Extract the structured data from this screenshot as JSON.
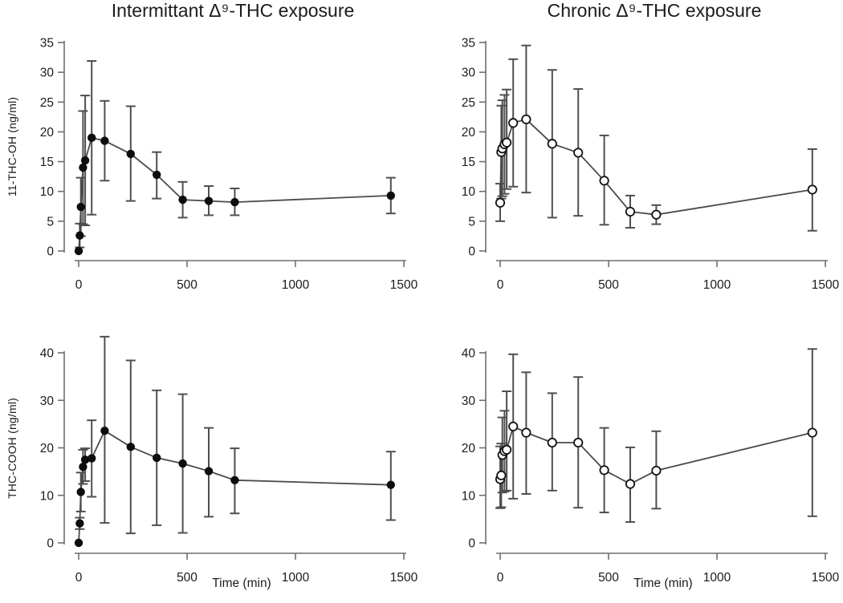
{
  "shared": {
    "x_axis_label": "Time (min)",
    "xticks": [
      0,
      500,
      1000,
      1500
    ],
    "time_points_min": [
      0,
      5,
      10,
      20,
      30,
      60,
      120,
      240,
      360,
      480,
      600,
      720,
      1440
    ]
  },
  "colors": {
    "line": "#4a4a4a",
    "error_bar": "#4f4f4f",
    "marker_filled": "#0d0d0d",
    "marker_open_fill": "#ffffff",
    "marker_open_stroke": "#111111",
    "text": "#1c1c1c",
    "background": "#ffffff"
  },
  "chart_data": [
    {
      "type": "line",
      "panel": "top-left",
      "title": "Intermittant Δ⁹-THC exposure",
      "ylabel": "11-THC-OH (ng/ml)",
      "xlabel": "",
      "marker": "filled",
      "xlim": [
        0,
        1500
      ],
      "ylim": [
        0,
        35
      ],
      "yticks": [
        0,
        5,
        10,
        15,
        20,
        25,
        30,
        35
      ],
      "xticks": [
        0,
        500,
        1000,
        1500
      ],
      "x": [
        0,
        5,
        10,
        20,
        30,
        60,
        120,
        240,
        360,
        480,
        600,
        720,
        1440
      ],
      "mean": [
        0,
        2.6,
        7.4,
        14.0,
        15.2,
        19.0,
        18.5,
        16.3,
        12.8,
        8.6,
        8.4,
        8.2,
        9.3
      ],
      "err_low": [
        0,
        0.6,
        2.5,
        4.5,
        4.3,
        6.1,
        11.8,
        8.4,
        8.8,
        5.6,
        6.0,
        6.0,
        6.3
      ],
      "err_high": [
        0,
        4.6,
        12.3,
        23.5,
        26.1,
        31.9,
        25.2,
        24.3,
        16.6,
        11.6,
        10.9,
        10.5,
        12.3
      ]
    },
    {
      "type": "line",
      "panel": "top-right",
      "title": "Chronic Δ⁹-THC exposure",
      "ylabel": "",
      "xlabel": "",
      "marker": "open",
      "xlim": [
        0,
        1500
      ],
      "ylim": [
        0,
        35
      ],
      "yticks": [
        0,
        5,
        10,
        15,
        20,
        25,
        30,
        35
      ],
      "xticks": [
        0,
        500,
        1000,
        1500
      ],
      "x": [
        0,
        5,
        10,
        20,
        30,
        60,
        120,
        240,
        360,
        480,
        600,
        720,
        1440
      ],
      "mean": [
        8.1,
        16.6,
        17.2,
        17.9,
        18.2,
        21.5,
        22.1,
        18.0,
        16.5,
        11.8,
        6.6,
        6.1,
        10.3
      ],
      "err_low": [
        5.0,
        8.8,
        9.2,
        9.6,
        10.4,
        10.8,
        9.8,
        5.6,
        5.9,
        4.4,
        3.9,
        4.5,
        3.4
      ],
      "err_high": [
        11.3,
        24.4,
        25.3,
        26.2,
        27.1,
        32.2,
        34.5,
        30.4,
        27.2,
        19.4,
        9.3,
        7.7,
        17.1
      ]
    },
    {
      "type": "line",
      "panel": "bottom-left",
      "title": "",
      "ylabel": "THC-COOH (ng/ml)",
      "xlabel": "Time (min)",
      "marker": "filled",
      "xlim": [
        0,
        1500
      ],
      "ylim": [
        0,
        40
      ],
      "yticks": [
        0,
        10,
        20,
        30,
        40
      ],
      "xticks": [
        0,
        500,
        1000,
        1500
      ],
      "x": [
        0,
        5,
        10,
        20,
        30,
        60,
        120,
        240,
        360,
        480,
        600,
        720,
        1440
      ],
      "mean": [
        0,
        4.1,
        10.7,
        16.0,
        17.5,
        17.8,
        23.6,
        20.2,
        17.9,
        16.7,
        15.1,
        13.2,
        12.2
      ],
      "err_low": [
        0,
        2.9,
        6.6,
        12.4,
        13.0,
        9.7,
        4.2,
        2.0,
        3.7,
        2.1,
        5.5,
        6.2,
        4.8
      ],
      "err_high": [
        0,
        5.3,
        14.8,
        19.6,
        19.9,
        25.8,
        43.4,
        38.4,
        32.1,
        31.3,
        24.2,
        19.9,
        19.2
      ]
    },
    {
      "type": "line",
      "panel": "bottom-right",
      "title": "",
      "ylabel": "",
      "xlabel": "Time (min)",
      "marker": "open",
      "xlim": [
        0,
        1500
      ],
      "ylim": [
        0,
        40
      ],
      "yticks": [
        0,
        10,
        20,
        30,
        40
      ],
      "xticks": [
        0,
        500,
        1000,
        1500
      ],
      "x": [
        0,
        5,
        10,
        20,
        30,
        60,
        120,
        240,
        360,
        480,
        600,
        720,
        1440
      ],
      "mean": [
        13.4,
        14.2,
        18.5,
        19.3,
        19.6,
        24.5,
        23.2,
        21.1,
        21.1,
        15.3,
        12.4,
        15.2,
        23.2
      ],
      "err_low": [
        7.3,
        7.5,
        10.6,
        10.8,
        11.0,
        9.3,
        10.3,
        11.0,
        7.4,
        6.4,
        4.4,
        7.2,
        5.6
      ],
      "err_high": [
        20.3,
        20.9,
        26.4,
        27.8,
        31.9,
        39.7,
        35.9,
        31.5,
        34.9,
        24.2,
        20.1,
        23.5,
        40.8
      ]
    }
  ]
}
